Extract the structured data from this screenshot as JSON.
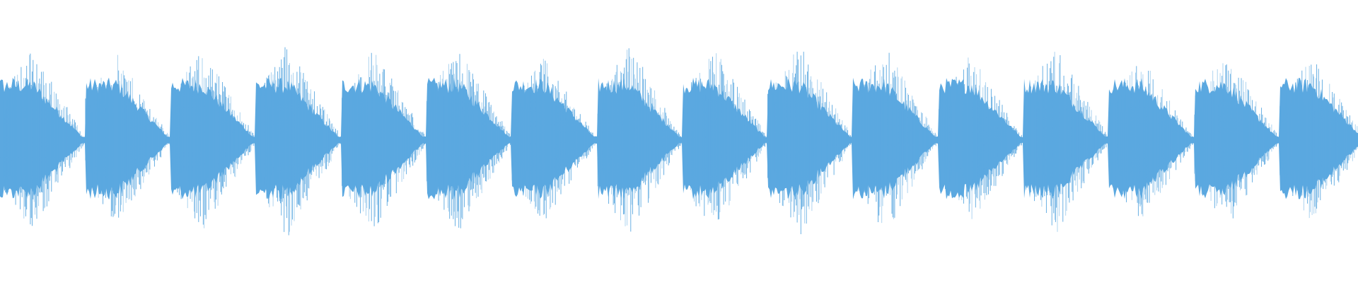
{
  "waveform": {
    "color": "#5ba8e0"
  }
}
